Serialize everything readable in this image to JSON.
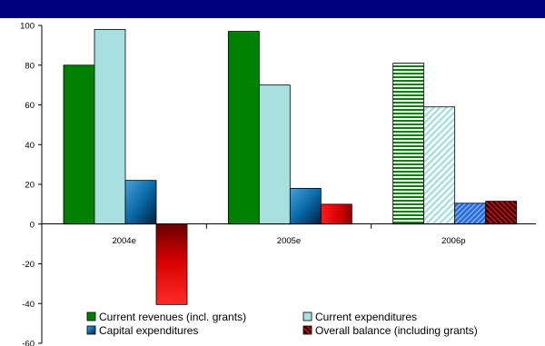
{
  "chart_data": {
    "type": "bar",
    "categories": [
      "2004e",
      "2005e",
      "2006p"
    ],
    "series": [
      {
        "name": "Current revenues (incl. grants)",
        "values": [
          80,
          97,
          81
        ]
      },
      {
        "name": "Current expenditures",
        "values": [
          98,
          70,
          59
        ]
      },
      {
        "name": "Capital expenditures",
        "values": [
          22,
          18,
          10.5
        ]
      },
      {
        "name": "Overall balance (including grants)",
        "values": [
          -40.5,
          10,
          11.5
        ]
      }
    ],
    "title": "",
    "xlabel": "",
    "ylabel": "",
    "ylim": [
      -60,
      100
    ],
    "yticks": [
      "100",
      "80",
      "60",
      "40",
      "20",
      "0",
      "-20",
      "-40",
      "-60"
    ],
    "legend_position": "bottom",
    "grid": false,
    "projection_note": "2006p bars drawn with hatched fills",
    "colors": {
      "top_band": "#00007f",
      "series": [
        "#008000",
        "#a8e0e0",
        "#0060a0",
        "#d00000"
      ],
      "axis": "#000000"
    }
  }
}
